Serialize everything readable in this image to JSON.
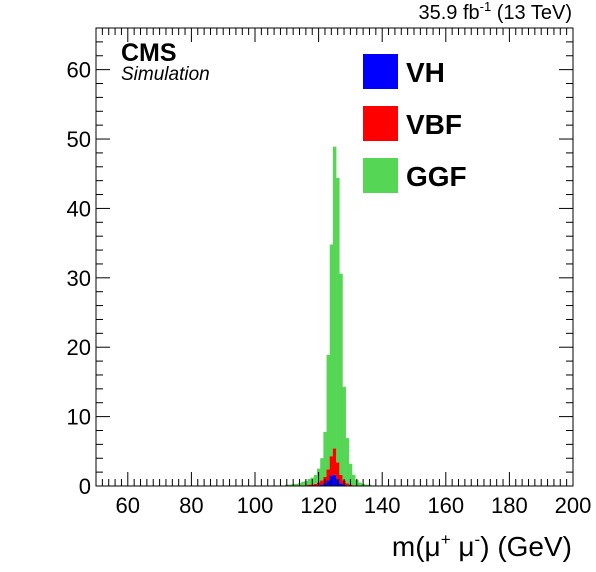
{
  "header": {
    "lumi_value": "35.9 fb",
    "lumi_exp": "-1",
    "energy": " (13 TeV)",
    "experiment": "CMS",
    "subtitle": "Simulation"
  },
  "axes": {
    "xlabel_prefix": "m(μ",
    "xlabel_plus": "+",
    "xlabel_mid": " μ",
    "xlabel_minus": "-",
    "xlabel_suffix": ") (GeV)"
  },
  "chart_data": {
    "type": "bar",
    "stacked": true,
    "xlim": [
      50,
      200
    ],
    "ylim": [
      0,
      66
    ],
    "bin_width": 1,
    "xticks": [
      "60",
      "80",
      "100",
      "120",
      "140",
      "160",
      "180",
      "200"
    ],
    "yticks": [
      "0",
      "10",
      "20",
      "30",
      "40",
      "50",
      "60"
    ],
    "legend_position": "top-center",
    "grid": false,
    "x": [
      110,
      111,
      112,
      113,
      114,
      115,
      116,
      117,
      118,
      119,
      120,
      121,
      122,
      123,
      124,
      125,
      126,
      127,
      128,
      129,
      130,
      131,
      132,
      133,
      134,
      135,
      136
    ],
    "series": [
      {
        "name": "VH",
        "color": "#0000ff",
        "values": [
          0,
          0,
          0,
          0,
          0,
          0,
          0,
          0,
          0,
          0,
          0.1,
          0.2,
          0.4,
          0.8,
          1.5,
          1.6,
          1.0,
          0.4,
          0.2,
          0.1,
          0,
          0,
          0,
          0,
          0,
          0,
          0
        ]
      },
      {
        "name": "VBF",
        "color": "#ff0000",
        "values": [
          0,
          0,
          0,
          0,
          0,
          0.1,
          0.1,
          0.2,
          0.2,
          0.3,
          0.4,
          0.6,
          0.9,
          1.6,
          2.8,
          3.8,
          2.4,
          1.2,
          0.6,
          0.3,
          0.2,
          0.1,
          0.1,
          0,
          0,
          0,
          0
        ]
      },
      {
        "name": "GGF",
        "color": "#55d655",
        "values": [
          0.2,
          0.2,
          0.3,
          0.3,
          0.4,
          0.5,
          0.6,
          0.8,
          1.0,
          1.3,
          2.0,
          3.2,
          6.5,
          16.5,
          30.5,
          43.5,
          41.0,
          29.0,
          13.5,
          6.5,
          3.0,
          1.5,
          0.8,
          0.5,
          0.3,
          0.2,
          0.2
        ]
      }
    ]
  }
}
